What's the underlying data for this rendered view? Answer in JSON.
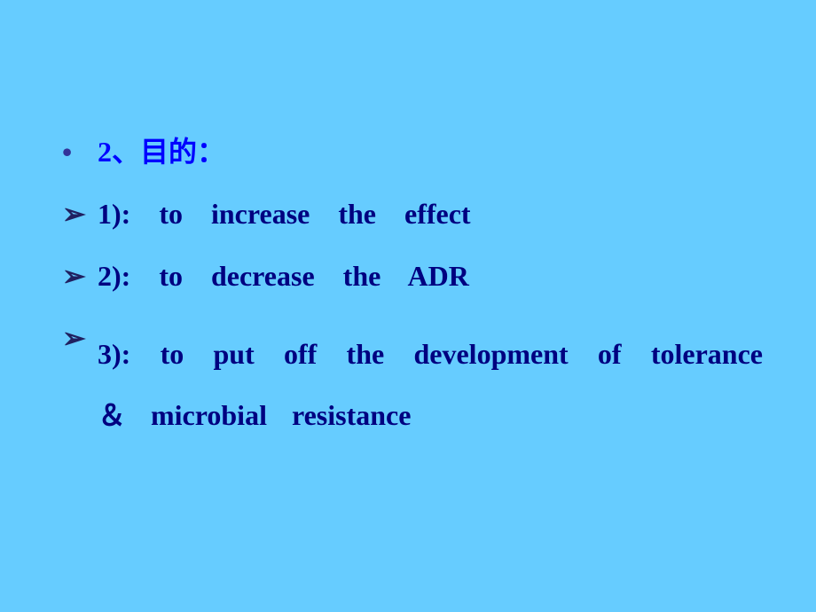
{
  "colors": {
    "background": "#66ccff",
    "heading_text": "#0000ff",
    "heading_bullet": "#333399",
    "body_text": "#000080",
    "arrow_bullet": "#202060"
  },
  "heading": {
    "bullet": "•",
    "text": "2、目的："
  },
  "items": [
    {
      "bullet": "➢",
      "text": "1): to    increase    the    effect"
    },
    {
      "bullet": "➢",
      "text": "2): to    decrease    the    ADR"
    },
    {
      "bullet": "➢",
      "text": "3): to   put   off   the   development   of   tolerance   ＆   microbial   resistance"
    }
  ]
}
